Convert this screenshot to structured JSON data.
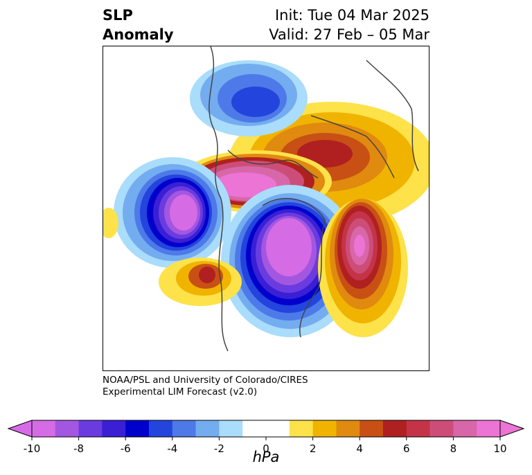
{
  "title": {
    "left_line1": "SLP",
    "left_line2": "Anomaly",
    "right_line1": "Init: Tue 04 Mar 2025",
    "right_line2": "Valid: 27 Feb – 05 Mar"
  },
  "credit": {
    "line1": "NOAA/PSL and University of Colorado/CIRES",
    "line2": "Experimental LIM Forecast (v2.0)"
  },
  "colorbar": {
    "unit": "hPa",
    "ticks": [
      "-10",
      "-8",
      "-6",
      "-4",
      "-2",
      "0",
      "2",
      "4",
      "6",
      "8",
      "10"
    ],
    "colors": [
      "#d66be6",
      "#a357e0",
      "#6a3ce0",
      "#3a1fd4",
      "#0000cc",
      "#2344dd",
      "#4d7ae8",
      "#74acf0",
      "#aadcfb",
      "#ffffff",
      "#ffffff",
      "#fde24a",
      "#f0b400",
      "#e08a10",
      "#c85014",
      "#b02020",
      "#c43448",
      "#cc4e78",
      "#d867aa",
      "#ec74d4"
    ],
    "extend_low_color": "#d66be6",
    "extend_high_color": "#ec74d4"
  },
  "map": {
    "anomaly_centers": [
      {
        "label": "neg",
        "color": "#0000cc"
      },
      {
        "label": "pos",
        "color": "#b02020"
      }
    ]
  }
}
